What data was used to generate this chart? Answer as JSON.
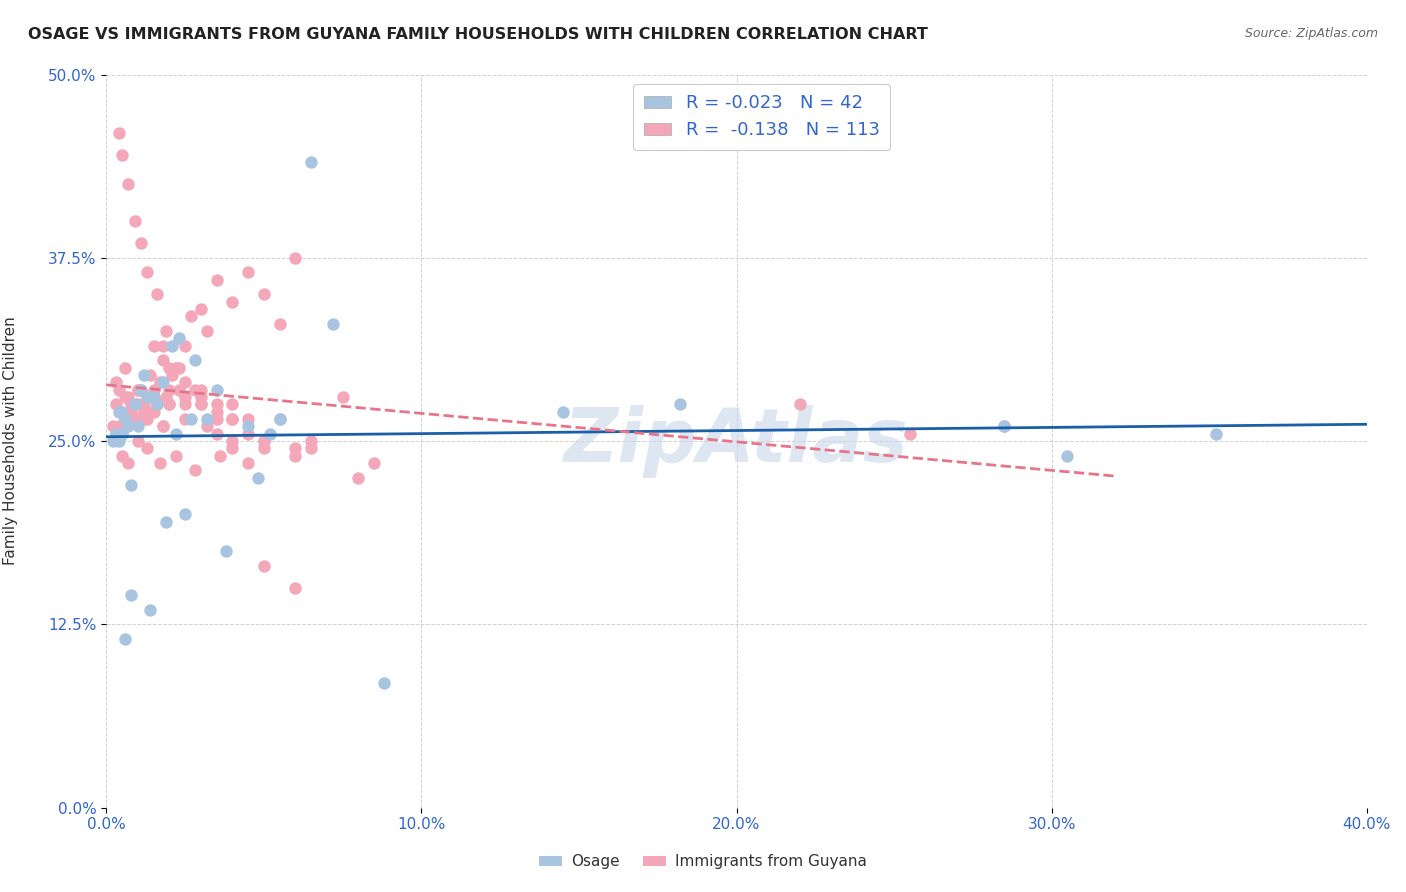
{
  "title": "OSAGE VS IMMIGRANTS FROM GUYANA FAMILY HOUSEHOLDS WITH CHILDREN CORRELATION CHART",
  "source": "Source: ZipAtlas.com",
  "xlabel_vals": [
    0,
    10,
    20,
    30,
    40
  ],
  "ylabel_vals": [
    0,
    12.5,
    25,
    37.5,
    50
  ],
  "xlim": [
    0,
    40
  ],
  "ylim": [
    0,
    50
  ],
  "ylabel": "Family Households with Children",
  "legend_label1": "Osage",
  "legend_label2": "Immigrants from Guyana",
  "R1": -0.023,
  "N1": 42,
  "R2": -0.138,
  "N2": 113,
  "color1": "#a8c4e0",
  "color2": "#f4a7b9",
  "trendline1_color": "#1a5fa8",
  "trendline2_color": "#e8748a",
  "watermark": "ZipAtlas",
  "watermark_color": "#c8d8e8",
  "osage_x": [
    0.5,
    1.2,
    2.1,
    0.8,
    1.5,
    3.2,
    4.5,
    2.8,
    6.5,
    0.3,
    0.6,
    0.9,
    1.8,
    2.3,
    1.1,
    0.4,
    0.7,
    1.3,
    2.7,
    5.2,
    14.5,
    18.2,
    28.5,
    35.2,
    0.2,
    0.5,
    1.0,
    1.6,
    2.2,
    3.5,
    4.8,
    7.2,
    0.4,
    0.8,
    1.4,
    2.5,
    3.8,
    5.5,
    0.6,
    1.9,
    30.5,
    8.8
  ],
  "osage_y": [
    27.0,
    29.5,
    31.5,
    22.0,
    28.0,
    26.5,
    26.0,
    30.5,
    44.0,
    25.5,
    26.5,
    27.5,
    29.0,
    32.0,
    28.5,
    27.0,
    26.0,
    28.0,
    26.5,
    25.5,
    27.0,
    27.5,
    26.0,
    25.5,
    25.0,
    25.5,
    26.0,
    27.5,
    25.5,
    28.5,
    22.5,
    33.0,
    25.0,
    14.5,
    13.5,
    20.0,
    17.5,
    26.5,
    11.5,
    19.5,
    24.0,
    8.5
  ],
  "guyana_x": [
    0.2,
    0.3,
    0.4,
    0.5,
    0.6,
    0.7,
    0.8,
    0.9,
    1.0,
    1.1,
    1.2,
    1.3,
    1.4,
    1.5,
    1.6,
    1.7,
    1.8,
    1.9,
    2.0,
    2.1,
    2.2,
    2.3,
    2.5,
    2.7,
    3.0,
    3.2,
    3.5,
    4.0,
    4.5,
    5.0,
    5.5,
    6.0,
    0.3,
    0.4,
    0.5,
    0.6,
    0.8,
    1.0,
    1.2,
    1.5,
    1.8,
    2.0,
    2.5,
    3.0,
    3.5,
    4.0,
    5.0,
    6.5,
    0.4,
    0.5,
    0.7,
    0.9,
    1.1,
    1.3,
    1.6,
    1.9,
    2.2,
    2.8,
    3.5,
    4.5,
    0.3,
    0.6,
    0.8,
    1.0,
    1.4,
    1.8,
    2.3,
    3.0,
    4.0,
    5.5,
    0.5,
    0.7,
    1.0,
    1.3,
    1.7,
    2.2,
    2.8,
    3.6,
    4.5,
    6.0,
    1.5,
    2.0,
    2.5,
    3.0,
    3.5,
    4.0,
    4.5,
    5.0,
    6.0,
    8.0,
    0.8,
    1.2,
    1.8,
    2.5,
    3.2,
    4.0,
    5.0,
    6.5,
    8.5,
    0.6,
    1.0,
    1.5,
    2.0,
    2.5,
    3.0,
    3.5,
    4.0,
    5.0,
    6.0,
    7.5,
    28.5,
    25.5,
    22.0
  ],
  "guyana_y": [
    26.0,
    27.5,
    28.5,
    25.5,
    26.5,
    28.0,
    27.0,
    26.5,
    27.5,
    28.5,
    27.0,
    26.5,
    27.0,
    28.0,
    27.5,
    29.0,
    30.5,
    28.0,
    27.5,
    29.5,
    30.0,
    28.5,
    31.5,
    33.5,
    34.0,
    32.5,
    36.0,
    34.5,
    36.5,
    35.0,
    33.0,
    37.5,
    25.5,
    26.0,
    25.5,
    26.5,
    27.0,
    26.5,
    27.5,
    27.0,
    26.0,
    28.5,
    26.5,
    27.5,
    25.5,
    26.5,
    24.5,
    25.0,
    46.0,
    44.5,
    42.5,
    40.0,
    38.5,
    36.5,
    35.0,
    32.5,
    30.0,
    28.5,
    27.5,
    26.5,
    29.0,
    28.0,
    27.5,
    28.5,
    29.5,
    31.5,
    30.0,
    28.0,
    27.5,
    26.5,
    24.0,
    23.5,
    25.0,
    24.5,
    23.5,
    24.0,
    23.0,
    24.0,
    23.5,
    24.5,
    28.5,
    27.5,
    29.0,
    28.5,
    27.0,
    26.5,
    25.5,
    25.0,
    24.0,
    22.5,
    27.0,
    26.5,
    26.0,
    27.5,
    26.0,
    24.5,
    25.0,
    24.5,
    23.5,
    30.0,
    28.5,
    31.5,
    30.0,
    28.0,
    27.5,
    26.5,
    25.0,
    16.5,
    15.0,
    28.0,
    26.0,
    25.5,
    27.5
  ]
}
